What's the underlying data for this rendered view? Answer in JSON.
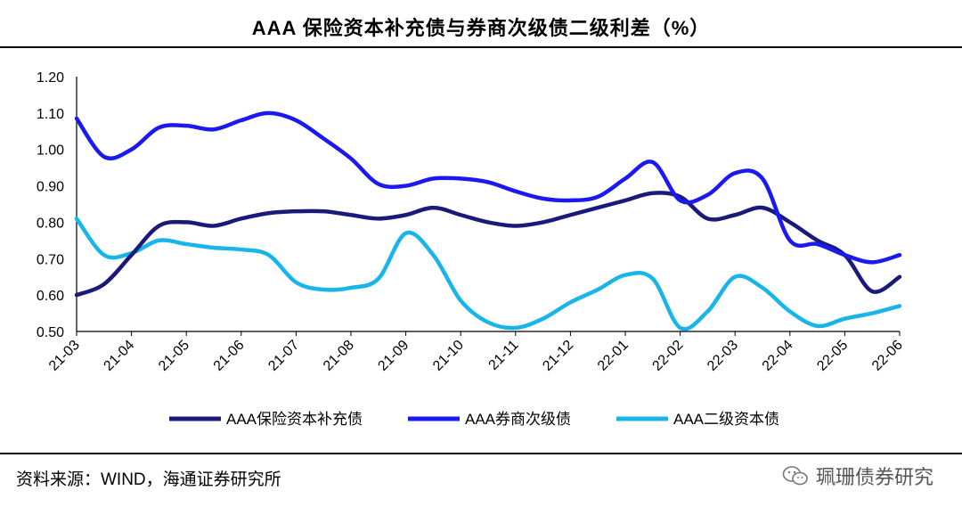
{
  "header": {
    "title": "AAA 保险资本补充债与券商次级债二级利差（%）"
  },
  "footer": {
    "source": "资料来源：WIND，海通证券研究所",
    "watermark": "珮珊债券研究",
    "watermark_icon": "wechat-icon"
  },
  "chart_data": {
    "type": "line",
    "title": "AAA 保险资本补充债与券商次级债二级利差（%）",
    "xlabel": "",
    "ylabel": "",
    "ylim": [
      0.5,
      1.2
    ],
    "yticks": [
      "0.50",
      "0.60",
      "0.70",
      "0.80",
      "0.90",
      "1.00",
      "1.10",
      "1.20"
    ],
    "categories": [
      "21-03",
      "21-04",
      "21-05",
      "21-06",
      "21-07",
      "21-08",
      "21-09",
      "21-10",
      "21-11",
      "21-12",
      "22-01",
      "22-02",
      "22-03",
      "22-04",
      "22-05",
      "22-06"
    ],
    "legend_position": "bottom",
    "series": [
      {
        "name": "AAA保险资本补充债",
        "color": "#1A1A7A",
        "x": [
          0,
          0.5,
          1,
          1.5,
          2,
          2.5,
          3,
          3.5,
          4,
          4.5,
          5,
          5.5,
          6,
          6.5,
          7,
          7.5,
          8,
          8.5,
          9,
          9.5,
          10,
          10.5,
          11,
          11.5,
          12,
          12.5,
          13,
          13.5,
          14,
          14.5,
          15
        ],
        "values": [
          0.6,
          0.63,
          0.71,
          0.79,
          0.8,
          0.79,
          0.81,
          0.825,
          0.83,
          0.83,
          0.82,
          0.81,
          0.82,
          0.84,
          0.82,
          0.8,
          0.79,
          0.8,
          0.82,
          0.84,
          0.86,
          0.88,
          0.87,
          0.81,
          0.82,
          0.84,
          0.8,
          0.75,
          0.71,
          0.61,
          0.65
        ]
      },
      {
        "name": "AAA券商次级债",
        "color": "#1A1AF0",
        "x": [
          0,
          0.5,
          1,
          1.5,
          2,
          2.5,
          3,
          3.5,
          4,
          4.5,
          5,
          5.5,
          6,
          6.5,
          7,
          7.5,
          8,
          8.5,
          9,
          9.5,
          10,
          10.5,
          11,
          11.5,
          12,
          12.5,
          13,
          13.5,
          14,
          14.5,
          15
        ],
        "values": [
          1.085,
          0.98,
          1.0,
          1.06,
          1.065,
          1.055,
          1.08,
          1.1,
          1.08,
          1.03,
          0.975,
          0.905,
          0.9,
          0.92,
          0.92,
          0.91,
          0.885,
          0.865,
          0.86,
          0.87,
          0.92,
          0.965,
          0.86,
          0.875,
          0.935,
          0.92,
          0.75,
          0.74,
          0.71,
          0.69,
          0.71
        ]
      },
      {
        "name": "AAA二级资本债",
        "color": "#19B5EA",
        "x": [
          0,
          0.5,
          1,
          1.5,
          2,
          2.5,
          3,
          3.5,
          4,
          4.5,
          5,
          5.5,
          6,
          6.5,
          7,
          7.5,
          8,
          8.5,
          9,
          9.5,
          10,
          10.5,
          11,
          11.5,
          12,
          12.5,
          13,
          13.5,
          14,
          14.5,
          15
        ],
        "values": [
          0.81,
          0.71,
          0.715,
          0.75,
          0.74,
          0.73,
          0.725,
          0.71,
          0.635,
          0.615,
          0.62,
          0.645,
          0.77,
          0.71,
          0.585,
          0.525,
          0.51,
          0.535,
          0.58,
          0.615,
          0.655,
          0.645,
          0.51,
          0.555,
          0.65,
          0.62,
          0.555,
          0.515,
          0.535,
          0.55,
          0.57
        ]
      }
    ]
  }
}
